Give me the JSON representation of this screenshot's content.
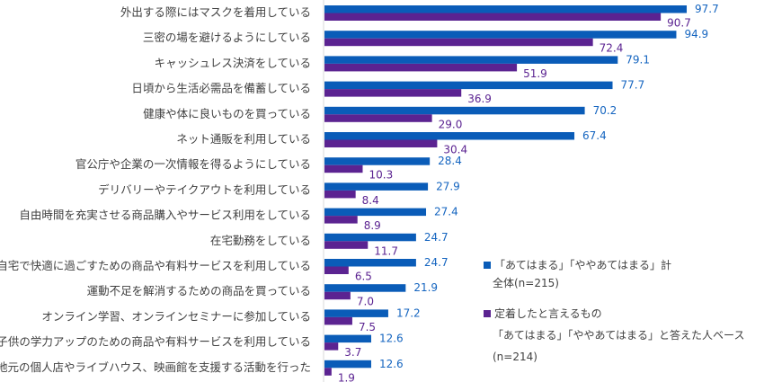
{
  "chart_data": {
    "type": "bar",
    "orientation": "horizontal",
    "title": "",
    "xlabel": "",
    "ylabel": "",
    "xlim": [
      0,
      100
    ],
    "grid": false,
    "legend_position": "right",
    "categories": [
      "外出する際にはマスクを着用している",
      "三密の場を避けるようにしている",
      "キャッシュレス決済をしている",
      "日頃から生活必需品を備蓄している",
      "健康や体に良いものを買っている",
      "ネット通販を利用している",
      "官公庁や企業の一次情報を得るようにしている",
      "デリバリーやテイクアウトを利用している",
      "自由時間を充実させる商品購入やサービス利用をしている",
      "在宅勤務をしている",
      "自宅で快適に過ごすための商品や有料サービスを利用している",
      "運動不足を解消するための商品を買っている",
      "オンライン学習、オンラインセミナーに参加している",
      "子供の学力アップのための商品や有料サービスを利用している",
      "地元の個人店やライブハウス、映画館を支援する活動を行った"
    ],
    "series": [
      {
        "name": "「あてはまる」「ややあてはまる」計 全体(n=215)",
        "color": "#0a5cb8",
        "label_color": "#1565c0",
        "values": [
          97.7,
          94.9,
          79.1,
          77.7,
          70.2,
          67.4,
          28.4,
          27.9,
          27.4,
          24.7,
          24.7,
          21.9,
          17.2,
          12.6,
          12.6
        ]
      },
      {
        "name": "定着したと言えるもの 「あてはまる」「ややあてはまる」と答えた人ベース (n=214)",
        "color": "#5b2391",
        "label_color": "#5b2391",
        "values": [
          90.7,
          72.4,
          51.9,
          36.9,
          29.0,
          30.4,
          10.3,
          8.4,
          8.9,
          11.7,
          6.5,
          7.0,
          7.5,
          3.7,
          1.9
        ]
      }
    ]
  },
  "legend": {
    "items": [
      {
        "lines": [
          "「あてはまる」「ややあてはまる」計",
          "全体(n=215)"
        ],
        "color": "#0a5cb8"
      },
      {
        "lines": [
          "定着したと言えるもの",
          "「あてはまる」「ややあてはまる」と答えた人ベース",
          "(n=214)"
        ],
        "color": "#5b2391"
      }
    ]
  }
}
